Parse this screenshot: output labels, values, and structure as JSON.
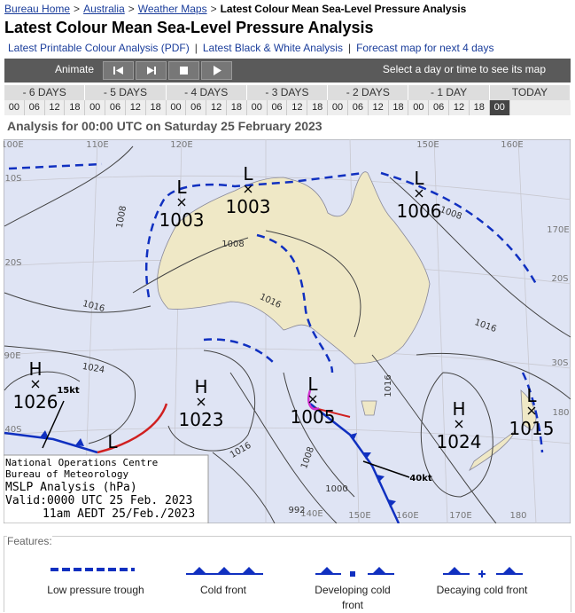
{
  "breadcrumb": {
    "items": [
      "Bureau Home",
      "Australia",
      "Weather Maps"
    ],
    "current": "Latest Colour Mean Sea-Level Pressure Analysis",
    "separator": ">"
  },
  "title": "Latest Colour Mean Sea-Level Pressure Analysis",
  "links": {
    "items": [
      "Latest Printable Colour Analysis (PDF)",
      "Latest Black & White Analysis",
      "Forecast map for next 4 days"
    ],
    "separator": "|"
  },
  "toolbar": {
    "animate": "Animate",
    "hint": "Select a day or time to see its map"
  },
  "timeline": {
    "days": [
      {
        "label": "- 6 DAYS",
        "hours": [
          "00",
          "06",
          "12",
          "18"
        ]
      },
      {
        "label": "- 5 DAYS",
        "hours": [
          "00",
          "06",
          "12",
          "18"
        ]
      },
      {
        "label": "- 4 DAYS",
        "hours": [
          "00",
          "06",
          "12",
          "18"
        ]
      },
      {
        "label": "- 3 DAYS",
        "hours": [
          "00",
          "06",
          "12",
          "18"
        ]
      },
      {
        "label": "- 2 DAYS",
        "hours": [
          "00",
          "06",
          "12",
          "18"
        ]
      },
      {
        "label": "- 1 DAY",
        "hours": [
          "00",
          "06",
          "12",
          "18"
        ]
      },
      {
        "label": "TODAY",
        "hours": [
          "00"
        ]
      }
    ]
  },
  "analysis_title": "Analysis for 00:00 UTC on Saturday 25 February 2023",
  "map": {
    "grid_labels": [
      "100E",
      "110E",
      "120E",
      "150E",
      "160E",
      "10S",
      "20S",
      "90E",
      "40S",
      "170E",
      "20S",
      "30S",
      "180",
      "140E",
      "150E",
      "160E",
      "170E",
      "180"
    ],
    "systems": [
      {
        "symbol": "L",
        "pressure": "1003"
      },
      {
        "symbol": "L",
        "pressure": "1003"
      },
      {
        "symbol": "L",
        "pressure": "1006"
      },
      {
        "symbol": "H",
        "pressure": "1026"
      },
      {
        "symbol": "H",
        "pressure": "1023"
      },
      {
        "symbol": "L",
        "pressure": "1005"
      },
      {
        "symbol": "H",
        "pressure": "1024"
      },
      {
        "symbol": "L",
        "pressure": "1015"
      }
    ],
    "extra_low": "L",
    "isobar_labels": [
      "1008",
      "1008",
      "1016",
      "1024",
      "1016",
      "1008",
      "1016",
      "1016",
      "1016",
      "1008",
      "1000",
      "992"
    ],
    "wind_labels": [
      "15kt",
      "40kt"
    ],
    "info_box": [
      "National Operations Centre",
      "Bureau of Meteorology",
      "MSLP Analysis (hPa)",
      "Valid:0000 UTC 25 Feb. 2023",
      "11am AEDT 25/Feb./2023"
    ]
  },
  "features": {
    "title": "Features:",
    "items": [
      "Low pressure trough",
      "Cold front",
      "Developing cold front",
      "Decaying cold front"
    ]
  }
}
